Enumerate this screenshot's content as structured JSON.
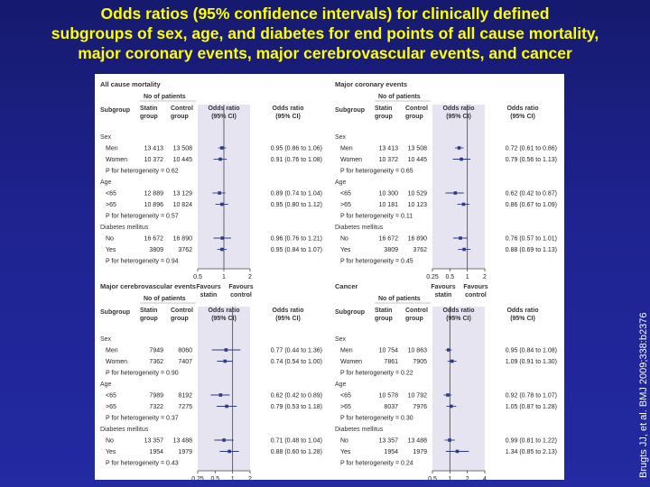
{
  "slide": {
    "title_lines": [
      "Odds  ratios  (95% confidence intervals)  for  clinically  defined",
      "subgroups of sex, age, and diabetes for end points of all cause mortality,",
      "major coronary events, major cerebrovascular events, and cancer"
    ],
    "citation": "Brugts JJ, et al. BMJ 2009;338:b2376"
  },
  "headers": {
    "no_of_patients": "No of patients",
    "subgroup": "Subgroup",
    "statin_1": "Statin",
    "statin_2": "group",
    "control_1": "Control",
    "control_2": "group",
    "or_1": "Odds ratio",
    "or_2": "(95% CI)",
    "favours_statin_1": "Favours",
    "favours_statin_2": "statin",
    "favours_control_1": "Favours",
    "favours_control_2": "control"
  },
  "colors": {
    "band": "#e6e4f1",
    "marker": "#2b3a8c",
    "text": "#222222",
    "header": "#333333"
  },
  "panels": [
    {
      "title": "All cause mortality",
      "axis_ticks": [
        "0.5",
        "1",
        "2"
      ],
      "axis_range": [
        0.5,
        2
      ],
      "rows": [
        {
          "kind": "group",
          "label": "Sex"
        },
        {
          "kind": "data",
          "label": "Men",
          "statin": "13 413",
          "control": "13 508",
          "or": 0.95,
          "lo": 0.86,
          "hi": 1.06,
          "ci": "0.95 (0.86 to 1.06)"
        },
        {
          "kind": "data",
          "label": "Women",
          "statin": "10 372",
          "control": "10 445",
          "or": 0.91,
          "lo": 0.76,
          "hi": 1.08,
          "ci": "0.91 (0.76 to 1.08)"
        },
        {
          "kind": "p",
          "label": "P for heterogeneity = 0.62"
        },
        {
          "kind": "group",
          "label": "Age"
        },
        {
          "kind": "data",
          "label": "<65",
          "statin": "12 889",
          "control": "13 129",
          "or": 0.89,
          "lo": 0.74,
          "hi": 1.04,
          "ci": "0.89 (0.74 to 1.04)"
        },
        {
          "kind": "data",
          "label": ">65",
          "statin": "10 896",
          "control": "10 824",
          "or": 0.95,
          "lo": 0.8,
          "hi": 1.12,
          "ci": "0.95 (0.80 to 1.12)"
        },
        {
          "kind": "p",
          "label": "P for heterogeneity = 0.57"
        },
        {
          "kind": "group",
          "label": "Diabetes mellitus"
        },
        {
          "kind": "data",
          "label": "No",
          "statin": "16 672",
          "control": "16 890",
          "or": 0.96,
          "lo": 0.76,
          "hi": 1.21,
          "ci": "0.96 (0.76 to 1.21)"
        },
        {
          "kind": "data",
          "label": "Yes",
          "statin": "3809",
          "control": "3762",
          "or": 0.95,
          "lo": 0.84,
          "hi": 1.07,
          "ci": "0.95 (0.84 to 1.07)"
        },
        {
          "kind": "p",
          "label": "P for heterogeneity = 0.94"
        }
      ]
    },
    {
      "title": "Major coronary events",
      "axis_ticks": [
        "0.25",
        "0.5",
        "1",
        "2"
      ],
      "axis_range": [
        0.25,
        2
      ],
      "rows": [
        {
          "kind": "group",
          "label": "Sex"
        },
        {
          "kind": "data",
          "label": "Men",
          "statin": "13 413",
          "control": "13 508",
          "or": 0.72,
          "lo": 0.61,
          "hi": 0.86,
          "ci": "0.72 (0.61 to 0.86)"
        },
        {
          "kind": "data",
          "label": "Women",
          "statin": "10 372",
          "control": "10 445",
          "or": 0.79,
          "lo": 0.56,
          "hi": 1.13,
          "ci": "0.79 (0.56 to 1.13)"
        },
        {
          "kind": "p",
          "label": "P for heterogeneity = 0.65"
        },
        {
          "kind": "group",
          "label": "Age"
        },
        {
          "kind": "data",
          "label": "<65",
          "statin": "10 300",
          "control": "10 529",
          "or": 0.62,
          "lo": 0.42,
          "hi": 0.87,
          "ci": "0.62 (0.42 to 0.87)"
        },
        {
          "kind": "data",
          "label": ">65",
          "statin": "10 181",
          "control": "10 123",
          "or": 0.86,
          "lo": 0.67,
          "hi": 1.09,
          "ci": "0.86 (0.67 to 1.09)"
        },
        {
          "kind": "p",
          "label": "P for heterogeneity = 0.11"
        },
        {
          "kind": "group",
          "label": "Diabetes mellitus"
        },
        {
          "kind": "data",
          "label": "No",
          "statin": "16 672",
          "control": "16 890",
          "or": 0.76,
          "lo": 0.57,
          "hi": 1.01,
          "ci": "0.76 (0.57 to 1.01)"
        },
        {
          "kind": "data",
          "label": "Yes",
          "statin": "3809",
          "control": "3762",
          "or": 0.88,
          "lo": 0.69,
          "hi": 1.13,
          "ci": "0.88 (0.69 to 1.13)"
        },
        {
          "kind": "p",
          "label": "P for heterogeneity = 0.45"
        }
      ]
    },
    {
      "title": "Major cerebrovascular events",
      "axis_ticks": [
        "0.25",
        "0.5",
        "1",
        "2"
      ],
      "axis_range": [
        0.25,
        2
      ],
      "rows": [
        {
          "kind": "group",
          "label": "Sex"
        },
        {
          "kind": "data",
          "label": "Men",
          "statin": "7949",
          "control": "8060",
          "or": 0.77,
          "lo": 0.44,
          "hi": 1.36,
          "ci": "0.77 (0.44 to 1.36)"
        },
        {
          "kind": "data",
          "label": "Women",
          "statin": "7362",
          "control": "7407",
          "or": 0.74,
          "lo": 0.54,
          "hi": 1.0,
          "ci": "0.74 (0.54 to 1.00)"
        },
        {
          "kind": "p",
          "label": "P for heterogeneity = 0.90"
        },
        {
          "kind": "group",
          "label": "Age"
        },
        {
          "kind": "data",
          "label": "<65",
          "statin": "7989",
          "control": "8192",
          "or": 0.62,
          "lo": 0.42,
          "hi": 0.89,
          "ci": "0.62 (0.42 to 0.89)"
        },
        {
          "kind": "data",
          "label": ">65",
          "statin": "7322",
          "control": "7275",
          "or": 0.79,
          "lo": 0.53,
          "hi": 1.18,
          "ci": "0.79 (0.53 to 1.18)"
        },
        {
          "kind": "p",
          "label": "P for heterogeneity = 0.37"
        },
        {
          "kind": "group",
          "label": "Diabetes mellitus"
        },
        {
          "kind": "data",
          "label": "No",
          "statin": "13 357",
          "control": "13 488",
          "or": 0.71,
          "lo": 0.48,
          "hi": 1.04,
          "ci": "0.71 (0.48 to 1.04)"
        },
        {
          "kind": "data",
          "label": "Yes",
          "statin": "1954",
          "control": "1979",
          "or": 0.88,
          "lo": 0.6,
          "hi": 1.28,
          "ci": "0.88 (0.60 to 1.28)"
        },
        {
          "kind": "p",
          "label": "P for heterogeneity = 0.43"
        }
      ]
    },
    {
      "title": "Cancer",
      "axis_ticks": [
        "0.5",
        "1",
        "2",
        "4"
      ],
      "axis_range": [
        0.5,
        4
      ],
      "rows": [
        {
          "kind": "group",
          "label": "Sex"
        },
        {
          "kind": "data",
          "label": "Men",
          "statin": "10 754",
          "control": "10 863",
          "or": 0.95,
          "lo": 0.84,
          "hi": 1.08,
          "ci": "0.95 (0.84 to 1.08)"
        },
        {
          "kind": "data",
          "label": "Women",
          "statin": "7861",
          "control": "7905",
          "or": 1.09,
          "lo": 0.91,
          "hi": 1.3,
          "ci": "1.09 (0.91 to 1.30)"
        },
        {
          "kind": "p",
          "label": "P for heterogeneity = 0.22"
        },
        {
          "kind": "group",
          "label": "Age"
        },
        {
          "kind": "data",
          "label": "<65",
          "statin": "10 578",
          "control": "10 792",
          "or": 0.92,
          "lo": 0.78,
          "hi": 1.07,
          "ci": "0.92 (0.78 to 1.07)"
        },
        {
          "kind": "data",
          "label": ">65",
          "statin": "8037",
          "control": "7976",
          "or": 1.05,
          "lo": 0.87,
          "hi": 1.28,
          "ci": "1.05 (0.87 to 1.28)"
        },
        {
          "kind": "p",
          "label": "P for heterogeneity = 0.30"
        },
        {
          "kind": "group",
          "label": "Diabetes mellitus"
        },
        {
          "kind": "data",
          "label": "No",
          "statin": "13 357",
          "control": "13 488",
          "or": 0.99,
          "lo": 0.81,
          "hi": 1.22,
          "ci": "0.99 (0.81 to 1.22)"
        },
        {
          "kind": "data",
          "label": "Yes",
          "statin": "1954",
          "control": "1979",
          "or": 1.34,
          "lo": 0.85,
          "hi": 2.13,
          "ci": "1.34 (0.85 to 2.13)"
        },
        {
          "kind": "p",
          "label": "P for heterogeneity = 0.24"
        }
      ]
    }
  ]
}
